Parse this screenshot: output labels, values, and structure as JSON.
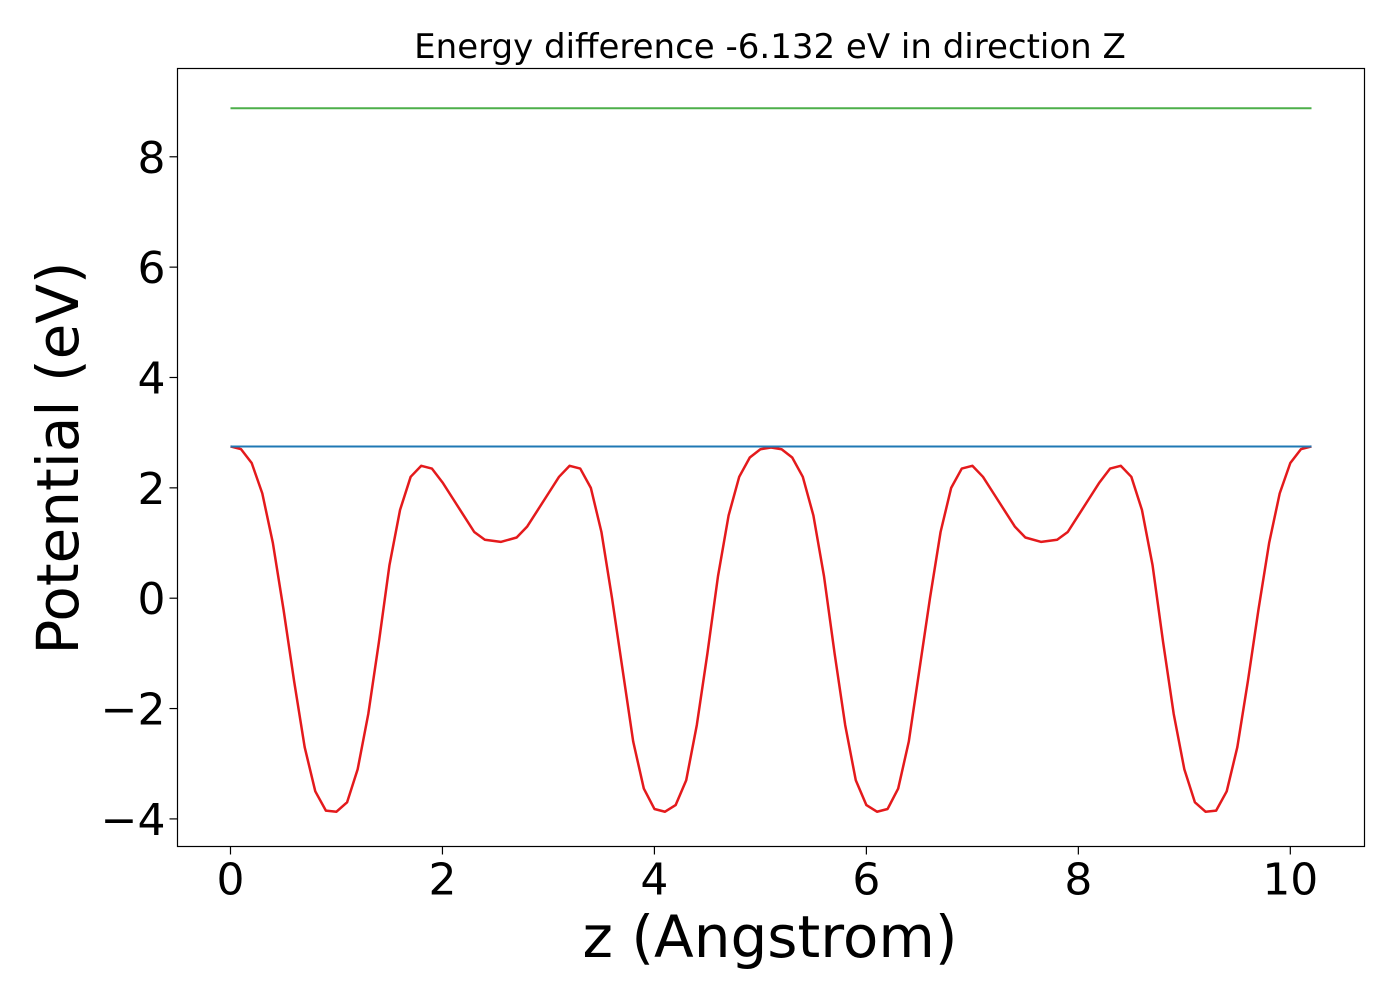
{
  "chart_data": {
    "type": "line",
    "title": "Energy difference -6.132 eV in direction Z",
    "xlabel": "z (Angstrom)",
    "ylabel": "Potential (eV)",
    "xlim": [
      -0.5,
      10.7
    ],
    "ylim": [
      -4.5,
      9.6
    ],
    "xticks": [
      0,
      2,
      4,
      6,
      8,
      10
    ],
    "xtick_labels": [
      "0",
      "2",
      "4",
      "6",
      "8",
      "10"
    ],
    "yticks": [
      -4,
      -2,
      0,
      2,
      4,
      6,
      8
    ],
    "ytick_labels": [
      "−4",
      "−2",
      "0",
      "2",
      "4",
      "6",
      "8"
    ],
    "grid": false,
    "series": [
      {
        "color": "#e41a1c",
        "x": [
          0.0,
          0.1,
          0.2,
          0.3,
          0.4,
          0.5,
          0.6,
          0.7,
          0.8,
          0.9,
          1.0,
          1.1,
          1.2,
          1.3,
          1.4,
          1.5,
          1.6,
          1.7,
          1.8,
          1.9,
          2.0,
          2.1,
          2.2,
          2.3,
          2.4,
          2.55,
          2.7,
          2.8,
          2.9,
          3.0,
          3.1,
          3.2,
          3.3,
          3.4,
          3.5,
          3.6,
          3.7,
          3.8,
          3.9,
          4.0,
          4.1,
          4.2,
          4.3,
          4.4,
          4.5,
          4.6,
          4.7,
          4.8,
          4.9,
          5.0,
          5.1,
          5.2,
          5.3,
          5.4,
          5.5,
          5.6,
          5.7,
          5.8,
          5.9,
          6.0,
          6.1,
          6.2,
          6.3,
          6.4,
          6.5,
          6.6,
          6.7,
          6.8,
          6.9,
          7.0,
          7.1,
          7.2,
          7.3,
          7.4,
          7.5,
          7.65,
          7.8,
          7.9,
          8.0,
          8.1,
          8.2,
          8.3,
          8.4,
          8.5,
          8.6,
          8.7,
          8.8,
          8.9,
          9.0,
          9.1,
          9.2,
          9.3,
          9.4,
          9.5,
          9.6,
          9.7,
          9.8,
          9.9,
          10.0,
          10.1,
          10.2
        ],
        "y": [
          2.75,
          2.7,
          2.45,
          1.9,
          1.0,
          -0.2,
          -1.5,
          -2.7,
          -3.5,
          -3.85,
          -3.87,
          -3.7,
          -3.1,
          -2.1,
          -0.8,
          0.6,
          1.6,
          2.2,
          2.4,
          2.35,
          2.1,
          1.8,
          1.5,
          1.2,
          1.06,
          1.02,
          1.1,
          1.3,
          1.6,
          1.9,
          2.2,
          2.4,
          2.35,
          2.0,
          1.2,
          0.0,
          -1.3,
          -2.6,
          -3.45,
          -3.82,
          -3.87,
          -3.75,
          -3.3,
          -2.3,
          -1.0,
          0.4,
          1.5,
          2.2,
          2.55,
          2.7,
          2.73,
          2.7,
          2.55,
          2.2,
          1.5,
          0.4,
          -1.0,
          -2.3,
          -3.3,
          -3.75,
          -3.87,
          -3.82,
          -3.45,
          -2.6,
          -1.3,
          0.0,
          1.2,
          2.0,
          2.35,
          2.4,
          2.2,
          1.9,
          1.6,
          1.3,
          1.1,
          1.02,
          1.06,
          1.2,
          1.5,
          1.8,
          2.1,
          2.35,
          2.4,
          2.2,
          1.6,
          0.6,
          -0.8,
          -2.1,
          -3.1,
          -3.7,
          -3.87,
          -3.85,
          -3.5,
          -2.7,
          -1.5,
          -0.2,
          1.0,
          1.9,
          2.45,
          2.7,
          2.75
        ]
      },
      {
        "color": "#1f78b4",
        "x": [
          0.0,
          10.2
        ],
        "y": [
          2.75,
          2.75
        ]
      },
      {
        "color": "#4daf4a",
        "x": [
          0.0,
          10.2
        ],
        "y": [
          8.88,
          8.88
        ]
      }
    ]
  }
}
